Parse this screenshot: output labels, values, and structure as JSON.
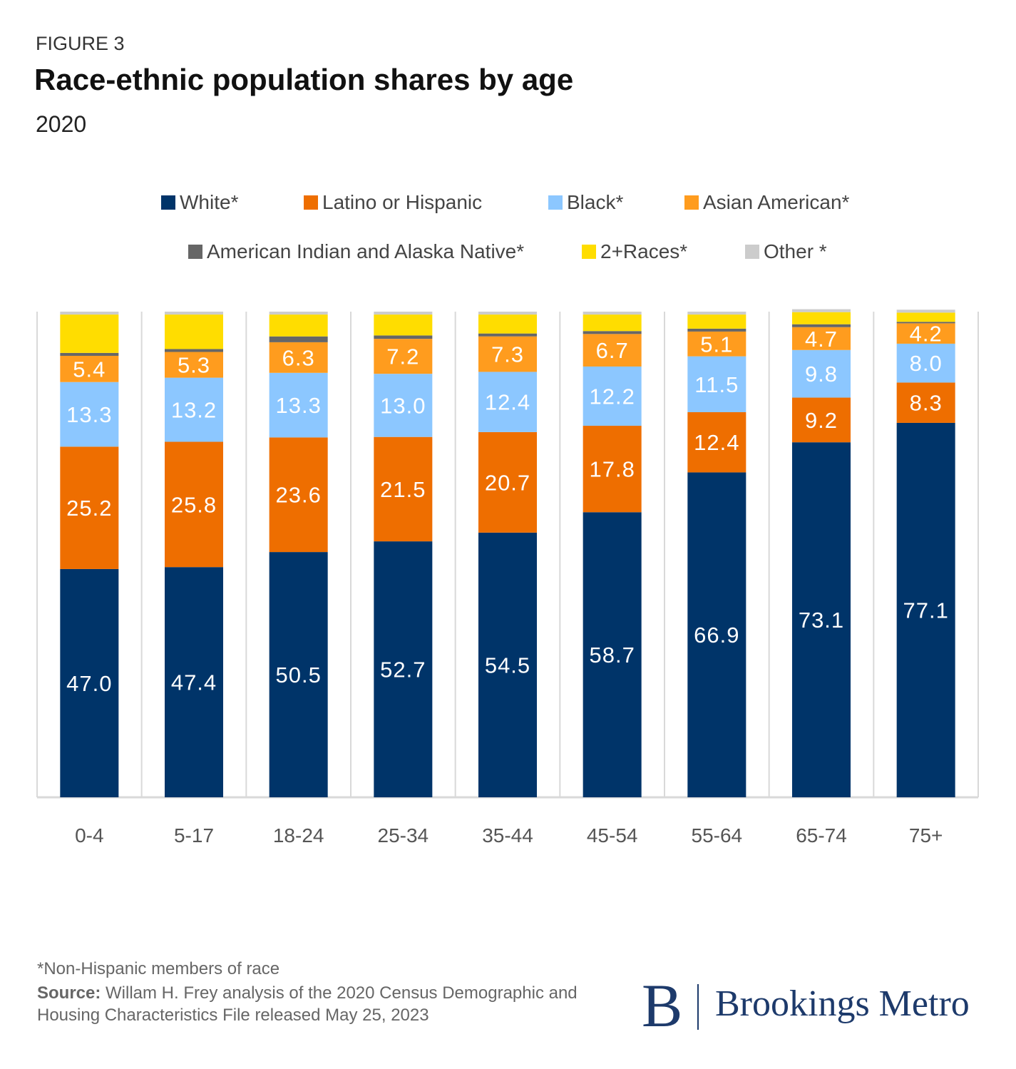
{
  "header": {
    "figure": "FIGURE 3",
    "title": "Race-ethnic population shares by age",
    "subtitle": "2020"
  },
  "footer": {
    "note": "*Non-Hispanic members of race",
    "source_label": "Source:",
    "source_text": " Willam H. Frey analysis of the 2020 Census Demographic and Housing Characteristics File released May 25, 2023",
    "logo_letter": "B",
    "logo_text": "Brookings Metro"
  },
  "chart_data": {
    "type": "bar",
    "stacked": true,
    "title": "Race-ethnic population shares by age",
    "subtitle": "2020",
    "categories": [
      "0-4",
      "5-17",
      "18-24",
      "25-34",
      "35-44",
      "45-54",
      "55-64",
      "65-74",
      "75+"
    ],
    "ylim": [
      0,
      100
    ],
    "grid": "vertical separators",
    "legend": "top",
    "series": [
      {
        "name": "White*",
        "color": "#003469",
        "labeled": true,
        "values": [
          47.0,
          47.4,
          50.5,
          52.7,
          54.5,
          58.7,
          66.9,
          73.1,
          77.1
        ]
      },
      {
        "name": "Latino or Hispanic",
        "color": "#ee6e00",
        "labeled": true,
        "values": [
          25.2,
          25.8,
          23.6,
          21.5,
          20.7,
          17.8,
          12.4,
          9.2,
          8.3
        ]
      },
      {
        "name": "Black*",
        "color": "#8cc7ff",
        "labeled": true,
        "values": [
          13.3,
          13.2,
          13.3,
          13.0,
          12.4,
          12.2,
          11.5,
          9.8,
          8.0
        ]
      },
      {
        "name": "Asian American*",
        "color": "#ff9c1e",
        "labeled": true,
        "values": [
          5.4,
          5.3,
          6.3,
          7.2,
          7.3,
          6.7,
          5.1,
          4.7,
          4.2
        ]
      },
      {
        "name": "American Indian and Alaska Native*",
        "color": "#666666",
        "labeled": false,
        "values": [
          0.6,
          0.6,
          1.2,
          0.7,
          0.6,
          0.6,
          0.6,
          0.6,
          0.3
        ]
      },
      {
        "name": "2+Races*",
        "color": "#ffdd00",
        "labeled": false,
        "values": [
          7.9,
          7.1,
          4.5,
          4.3,
          3.9,
          3.4,
          2.9,
          2.5,
          1.9
        ]
      },
      {
        "name": "Other *",
        "color": "#cccccc",
        "labeled": false,
        "values": [
          0.6,
          0.6,
          0.6,
          0.6,
          0.6,
          0.6,
          0.6,
          0.6,
          0.6
        ]
      }
    ]
  }
}
